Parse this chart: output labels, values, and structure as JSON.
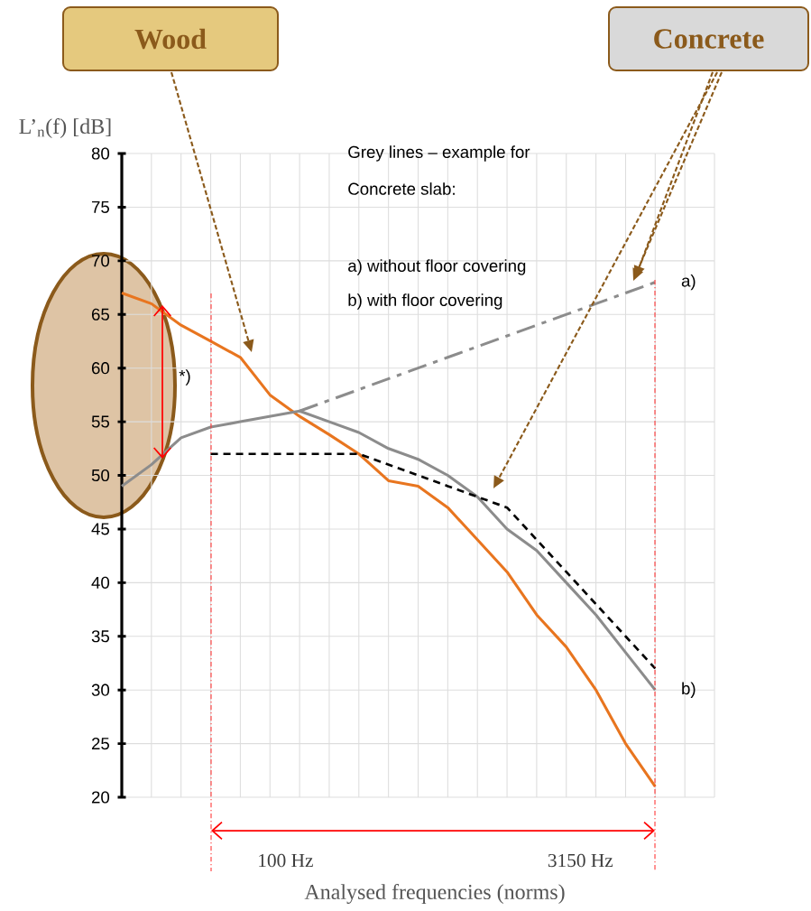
{
  "chart_data": {
    "type": "line",
    "ylabel": "L’$_{n}$(f) [dB]",
    "xlabel": "Analysed frequencies (norms)",
    "categories": [
      null,
      null,
      null,
      null,
      null,
      null,
      null,
      null,
      null,
      null,
      null,
      null,
      null,
      null,
      null,
      null,
      null,
      null,
      null
    ],
    "ylim": [
      20,
      80
    ],
    "yticks": [
      20,
      25,
      30,
      35,
      40,
      45,
      50,
      55,
      60,
      65,
      70,
      75,
      80
    ],
    "grid": true,
    "series": [
      {
        "color": "#e8751f",
        "values": [
          67,
          66,
          64,
          62.5,
          61,
          57.5,
          55.5,
          53.8,
          52,
          49.5,
          49,
          47,
          44,
          41,
          37,
          34,
          30,
          25,
          21
        ]
      },
      {
        "name": "b)",
        "color": "#8c8c8c",
        "values": [
          49,
          51,
          53.5,
          54.5,
          55,
          55.5,
          56,
          55,
          54,
          52.5,
          51.5,
          50,
          48,
          45,
          43,
          40,
          37,
          33.5,
          30
        ]
      },
      {
        "color": "#000000",
        "line_style": "dashed",
        "values": [
          null,
          null,
          null,
          52,
          52,
          52,
          52,
          52,
          52,
          51,
          50,
          49,
          48,
          47,
          44,
          41,
          38,
          35,
          32
        ]
      },
      {
        "name": "a)",
        "color": "#8c8c8c",
        "line_style": "dashdot",
        "values": [
          null,
          null,
          null,
          null,
          null,
          null,
          56,
          57,
          58,
          59,
          60,
          61,
          62,
          63,
          64,
          65,
          66,
          67,
          68
        ]
      }
    ],
    "annotations": [
      "Wood",
      "Concrete",
      "Grey lines – example for",
      "Concrete slab:",
      "a) without floor covering",
      "b) with floor covering",
      "*)",
      "100 Hz",
      "3150 Hz"
    ]
  }
}
